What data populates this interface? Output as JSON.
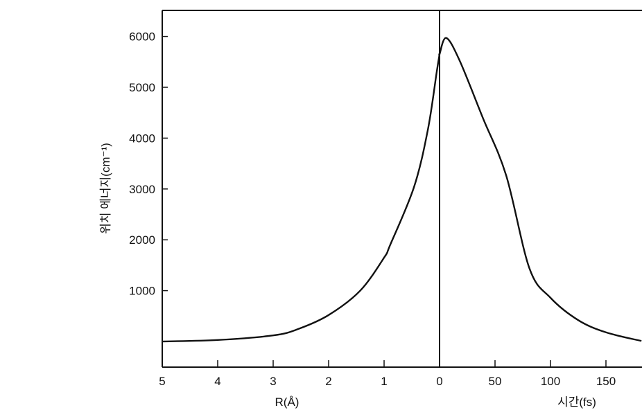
{
  "chart_data": {
    "type": "line",
    "title": "",
    "ylabel": "위치 에너지(cm⁻¹)",
    "ylim": [
      -500,
      6500
    ],
    "yticks": [
      "1000",
      "2000",
      "3000",
      "4000",
      "5000",
      "6000"
    ],
    "grid": false,
    "x_axes": [
      {
        "xlabel": "R(Å)",
        "xlim": [
          5,
          0
        ],
        "xticks": [
          "5",
          "4",
          "3",
          "2",
          "1",
          "0"
        ]
      },
      {
        "xlabel": "시간(fs)",
        "xlim": [
          0,
          182
        ],
        "xticks": [
          "50",
          "100",
          "150"
        ]
      }
    ],
    "series": [
      {
        "axis": "R(Å)",
        "x": [
          5,
          4,
          3,
          2.55,
          2,
          1.43,
          1,
          0.89,
          0.46,
          0.21,
          0.05,
          0
        ],
        "y": [
          0,
          30,
          120,
          245,
          520,
          1000,
          1650,
          1900,
          3040,
          4170,
          5310,
          5650
        ]
      },
      {
        "axis": "시간(fs)",
        "x": [
          0,
          6,
          18,
          39,
          60,
          81,
          100,
          125,
          150,
          182
        ],
        "y": [
          5650,
          5970,
          5530,
          4400,
          3270,
          1440,
          860,
          420,
          180,
          10
        ]
      }
    ],
    "line_color": "#111111"
  }
}
